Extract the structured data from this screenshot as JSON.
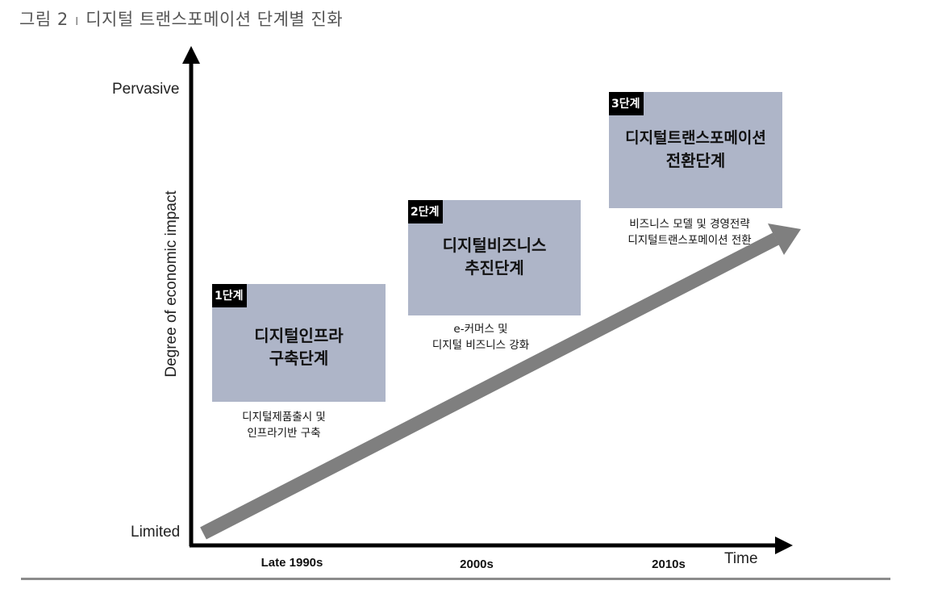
{
  "figure": {
    "label": "그림 2",
    "separator": "ı",
    "title": "디지털 트랜스포메이션 단계별 진화"
  },
  "axes": {
    "y_top": "Pervasive",
    "y_bottom": "Limited",
    "y_title": "Degree of economic impact",
    "x_title": "Time",
    "x_ticks": [
      "Late 1990s",
      "2000s",
      "2010s"
    ]
  },
  "stages": [
    {
      "badge": "1단계",
      "name_line1": "디지털인프라",
      "name_line2": "구축단계",
      "desc_line1": "디지털제품출시 및",
      "desc_line2": "인프라기반 구축"
    },
    {
      "badge": "2단계",
      "name_line1": "디지털비즈니스",
      "name_line2": "추진단계",
      "desc_line1": "e-커머스 및",
      "desc_line2": "디지털 비즈니스 강화"
    },
    {
      "badge": "3단계",
      "name_line1": "디지털트랜스포메이션",
      "name_line2": "전환단계",
      "desc_line1": "비즈니스 모델 및 경영전략",
      "desc_line2": "디지털트랜스포메이션 전환"
    }
  ],
  "colors": {
    "box_fill": "#aeb5c8",
    "badge_fill": "#000000",
    "trend_arrow": "#7f7f7f",
    "axis": "#000000"
  }
}
